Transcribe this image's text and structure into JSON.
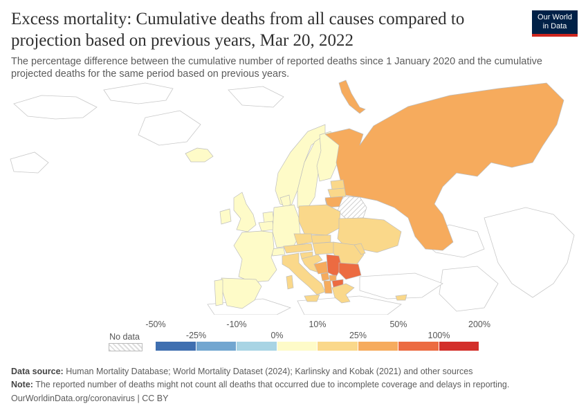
{
  "title": "Excess mortality: Cumulative deaths from all causes compared to projection based on previous years, Mar 20, 2022",
  "subtitle": "The percentage difference between the cumulative number of reported deaths since 1 January 2020 and the cumulative projected deaths for the same period based on previous years.",
  "logo": {
    "line1": "Our World",
    "line2": "in Data",
    "bg": "#002147",
    "accent": "#ce261e"
  },
  "legend": {
    "no_data_label": "No data",
    "bins": [
      {
        "range": "-50% to -25%",
        "color": "#3f6fb0"
      },
      {
        "range": "-25% to -10%",
        "color": "#72a6d0"
      },
      {
        "range": "-10% to 0%",
        "color": "#a8d4e4"
      },
      {
        "range": "0% to 10%",
        "color": "#fefbc8"
      },
      {
        "range": "10% to 25%",
        "color": "#fad88a"
      },
      {
        "range": "25% to 50%",
        "color": "#f6ab5d"
      },
      {
        "range": "50% to 100%",
        "color": "#ec6b41"
      },
      {
        "range": "100% to 200%",
        "color": "#d32f2a"
      }
    ],
    "ticks_top": [
      "-50%",
      "-10%",
      "10%",
      "50%",
      "200%"
    ],
    "ticks_bottom": [
      "-25%",
      "0%",
      "25%",
      "100%"
    ]
  },
  "footer": {
    "source_label": "Data source:",
    "source_text": " Human Mortality Database; World Mortality Dataset (2024); Karlinsky and Kobak (2021) and other sources",
    "note_label": "Note:",
    "note_text": " The reported number of deaths might not count all deaths that occurred due to incomplete coverage and delays in reporting.",
    "url": "OurWorldinData.org/coronavirus | CC BY"
  },
  "map_data": {
    "date": "Mar 20, 2022",
    "regions": [
      {
        "name": "Russia",
        "bin": "25% to 50%"
      },
      {
        "name": "Finland",
        "bin": "0% to 10%"
      },
      {
        "name": "Sweden",
        "bin": "0% to 10%"
      },
      {
        "name": "Norway",
        "bin": "0% to 10%"
      },
      {
        "name": "Iceland",
        "bin": "0% to 10%"
      },
      {
        "name": "Estonia",
        "bin": "10% to 25%"
      },
      {
        "name": "Latvia",
        "bin": "10% to 25%"
      },
      {
        "name": "Lithuania",
        "bin": "25% to 50%"
      },
      {
        "name": "Belarus",
        "bin": "No data"
      },
      {
        "name": "Ukraine",
        "bin": "10% to 25%"
      },
      {
        "name": "Poland",
        "bin": "10% to 25%"
      },
      {
        "name": "Germany",
        "bin": "0% to 10%"
      },
      {
        "name": "Denmark",
        "bin": "0% to 10%"
      },
      {
        "name": "United Kingdom",
        "bin": "0% to 10%"
      },
      {
        "name": "Ireland",
        "bin": "0% to 10%"
      },
      {
        "name": "Netherlands",
        "bin": "0% to 10%"
      },
      {
        "name": "Belgium",
        "bin": "0% to 10%"
      },
      {
        "name": "France",
        "bin": "0% to 10%"
      },
      {
        "name": "Spain",
        "bin": "0% to 10%"
      },
      {
        "name": "Portugal",
        "bin": "0% to 10%"
      },
      {
        "name": "Switzerland",
        "bin": "0% to 10%"
      },
      {
        "name": "Austria",
        "bin": "10% to 25%"
      },
      {
        "name": "Czechia",
        "bin": "10% to 25%"
      },
      {
        "name": "Slovakia",
        "bin": "10% to 25%"
      },
      {
        "name": "Hungary",
        "bin": "10% to 25%"
      },
      {
        "name": "Romania",
        "bin": "10% to 25%"
      },
      {
        "name": "Moldova",
        "bin": "10% to 25%"
      },
      {
        "name": "Italy",
        "bin": "10% to 25%"
      },
      {
        "name": "Slovenia",
        "bin": "10% to 25%"
      },
      {
        "name": "Croatia",
        "bin": "10% to 25%"
      },
      {
        "name": "Bosnia and Herzegovina",
        "bin": "25% to 50%"
      },
      {
        "name": "Serbia",
        "bin": "50% to 100%"
      },
      {
        "name": "Montenegro",
        "bin": "25% to 50%"
      },
      {
        "name": "Kosovo",
        "bin": "25% to 50%"
      },
      {
        "name": "Albania",
        "bin": "25% to 50%"
      },
      {
        "name": "North Macedonia",
        "bin": "50% to 100%"
      },
      {
        "name": "Bulgaria",
        "bin": "50% to 100%"
      },
      {
        "name": "Greece",
        "bin": "10% to 25%"
      },
      {
        "name": "Cyprus",
        "bin": "10% to 25%"
      }
    ]
  }
}
